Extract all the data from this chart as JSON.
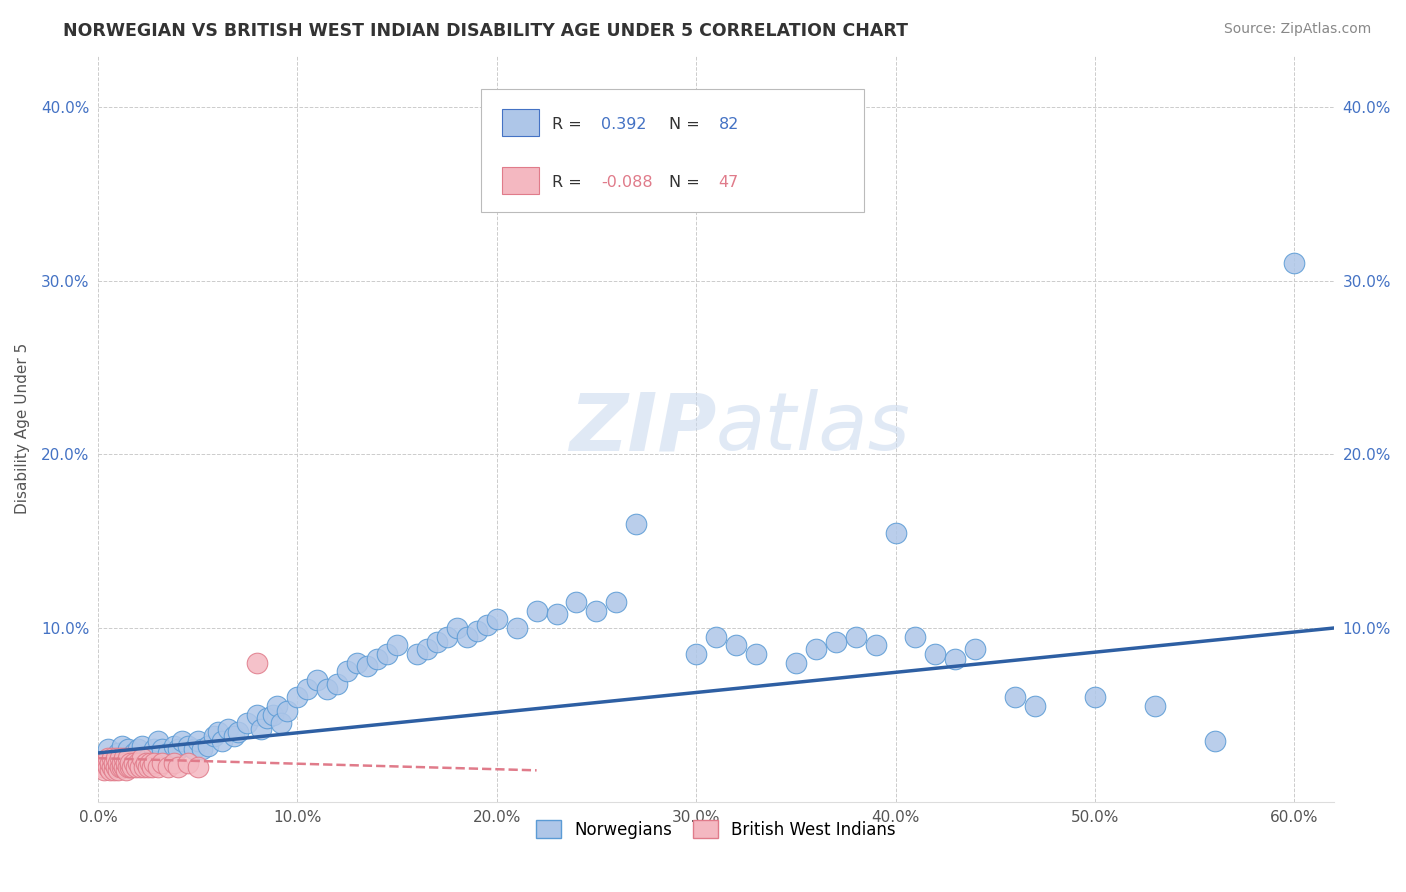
{
  "title": "NORWEGIAN VS BRITISH WEST INDIAN DISABILITY AGE UNDER 5 CORRELATION CHART",
  "source": "Source: ZipAtlas.com",
  "ylabel_label": "Disability Age Under 5",
  "xlim": [
    0.0,
    0.62
  ],
  "ylim": [
    0.0,
    0.43
  ],
  "xtick_vals": [
    0.0,
    0.1,
    0.2,
    0.3,
    0.4,
    0.5,
    0.6
  ],
  "xtick_labels": [
    "0.0%",
    "10.0%",
    "20.0%",
    "30.0%",
    "40.0%",
    "50.0%",
    "60.0%"
  ],
  "ytick_vals": [
    0.1,
    0.2,
    0.3,
    0.4
  ],
  "ytick_labels": [
    "10.0%",
    "20.0%",
    "30.0%",
    "40.0%"
  ],
  "legend_entries": [
    {
      "label": "Norwegians",
      "color": "#aec6e8",
      "edge": "#5b9bd5"
    },
    {
      "label": "British West Indians",
      "color": "#f4b8c1",
      "edge": "#e07b8a"
    }
  ],
  "r_box": {
    "blue_r": "0.392",
    "blue_n": "82",
    "pink_r": "-0.088",
    "pink_n": "47",
    "blue_color": "#4472c4",
    "pink_color": "#e07b8a",
    "blue_fill": "#aec6e8",
    "pink_fill": "#f4b8c1"
  },
  "watermark": "ZIPatlas",
  "blue_scatter_x": [
    0.005,
    0.008,
    0.01,
    0.012,
    0.015,
    0.018,
    0.02,
    0.022,
    0.025,
    0.028,
    0.03,
    0.032,
    0.035,
    0.038,
    0.04,
    0.042,
    0.045,
    0.048,
    0.05,
    0.052,
    0.055,
    0.058,
    0.06,
    0.062,
    0.065,
    0.068,
    0.07,
    0.075,
    0.08,
    0.082,
    0.085,
    0.088,
    0.09,
    0.092,
    0.095,
    0.1,
    0.105,
    0.11,
    0.115,
    0.12,
    0.125,
    0.13,
    0.135,
    0.14,
    0.145,
    0.15,
    0.16,
    0.165,
    0.17,
    0.175,
    0.18,
    0.185,
    0.19,
    0.195,
    0.2,
    0.21,
    0.22,
    0.23,
    0.24,
    0.25,
    0.26,
    0.27,
    0.3,
    0.31,
    0.32,
    0.33,
    0.35,
    0.36,
    0.37,
    0.38,
    0.39,
    0.4,
    0.41,
    0.42,
    0.43,
    0.44,
    0.46,
    0.47,
    0.5,
    0.53,
    0.56,
    0.6
  ],
  "blue_scatter_y": [
    0.03,
    0.025,
    0.028,
    0.032,
    0.03,
    0.028,
    0.03,
    0.032,
    0.025,
    0.03,
    0.035,
    0.03,
    0.028,
    0.032,
    0.03,
    0.035,
    0.032,
    0.03,
    0.035,
    0.03,
    0.032,
    0.038,
    0.04,
    0.035,
    0.042,
    0.038,
    0.04,
    0.045,
    0.05,
    0.042,
    0.048,
    0.05,
    0.055,
    0.045,
    0.052,
    0.06,
    0.065,
    0.07,
    0.065,
    0.068,
    0.075,
    0.08,
    0.078,
    0.082,
    0.085,
    0.09,
    0.085,
    0.088,
    0.092,
    0.095,
    0.1,
    0.095,
    0.098,
    0.102,
    0.105,
    0.1,
    0.11,
    0.108,
    0.115,
    0.11,
    0.115,
    0.16,
    0.085,
    0.095,
    0.09,
    0.085,
    0.08,
    0.088,
    0.092,
    0.095,
    0.09,
    0.155,
    0.095,
    0.085,
    0.082,
    0.088,
    0.06,
    0.055,
    0.06,
    0.055,
    0.035,
    0.31
  ],
  "pink_scatter_x": [
    0.002,
    0.003,
    0.004,
    0.005,
    0.005,
    0.006,
    0.006,
    0.007,
    0.007,
    0.008,
    0.008,
    0.009,
    0.009,
    0.01,
    0.01,
    0.011,
    0.011,
    0.012,
    0.012,
    0.013,
    0.013,
    0.014,
    0.014,
    0.015,
    0.015,
    0.016,
    0.016,
    0.017,
    0.018,
    0.019,
    0.02,
    0.021,
    0.022,
    0.023,
    0.024,
    0.025,
    0.026,
    0.027,
    0.028,
    0.03,
    0.032,
    0.035,
    0.038,
    0.04,
    0.045,
    0.05,
    0.08
  ],
  "pink_scatter_y": [
    0.02,
    0.018,
    0.022,
    0.02,
    0.025,
    0.018,
    0.022,
    0.02,
    0.025,
    0.018,
    0.022,
    0.02,
    0.025,
    0.018,
    0.022,
    0.02,
    0.025,
    0.02,
    0.022,
    0.02,
    0.025,
    0.018,
    0.022,
    0.02,
    0.025,
    0.02,
    0.022,
    0.02,
    0.022,
    0.02,
    0.022,
    0.02,
    0.025,
    0.02,
    0.022,
    0.02,
    0.022,
    0.02,
    0.022,
    0.02,
    0.022,
    0.02,
    0.022,
    0.02,
    0.022,
    0.02,
    0.08
  ],
  "blue_trendline_x": [
    0.0,
    0.62
  ],
  "blue_trendline_y": [
    0.028,
    0.1
  ],
  "pink_trendline_x": [
    0.0,
    0.22
  ],
  "pink_trendline_y": [
    0.025,
    0.018
  ],
  "grid_color": "#cccccc",
  "background_color": "#ffffff",
  "title_color": "#333333",
  "axis_label_color": "#555555",
  "tick_color": "#4472c4"
}
